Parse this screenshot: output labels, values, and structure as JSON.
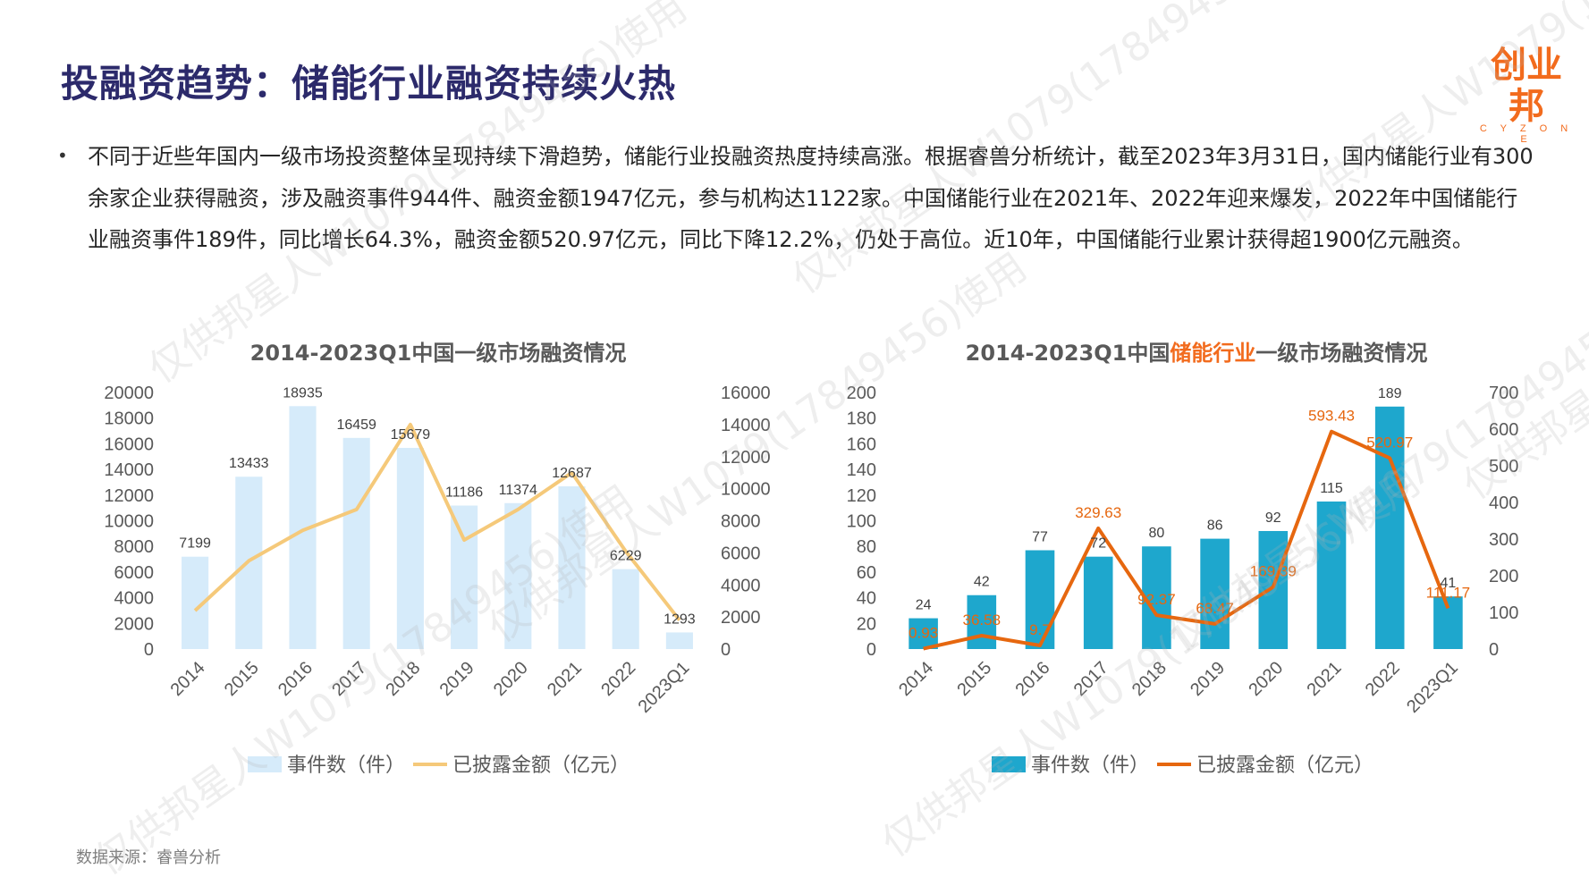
{
  "page": {
    "title": "投融资趋势：储能行业融资持续火热",
    "logo": {
      "text": "创业邦",
      "sub": "C Y Z O N E"
    },
    "paragraph": "不同于近些年国内一级市场投资整体呈现持续下滑趋势，储能行业投融资热度持续高涨。根据睿兽分析统计，截至2023年3月31日，国内储能行业有300余家企业获得融资，涉及融资事件944件、融资金额1947亿元，参与机构达1122家。中国储能行业在2021年、2022年迎来爆发，2022年中国储能行业融资事件189件，同比增长64.3%，融资金额520.97亿元，同比下降12.2%，仍处于高位。近10年，中国储能行业累计获得超1900亿元融资。",
    "source": "数据来源：睿兽分析",
    "watermark": "仅供邦星人W1079(17849456)使用"
  },
  "colors": {
    "title": "#2c2a6b",
    "brand": "#f26b1d",
    "chart1_bar": "#d6ebfa",
    "chart1_line": "#f5c97a",
    "chart2_bar": "#1ea7cd",
    "chart2_line": "#e6670f",
    "chart_title": "#595959",
    "axis_text": "#595959"
  },
  "chart_data": [
    {
      "type": "bar",
      "title": "2014-2023Q1中国一级市场融资情况",
      "categories": [
        "2014",
        "2015",
        "2016",
        "2017",
        "2018",
        "2019",
        "2020",
        "2021",
        "2022",
        "2023Q1"
      ],
      "series": [
        {
          "name": "事件数（件）",
          "type": "bar",
          "axis": "left",
          "values": [
            7199,
            13433,
            18935,
            16459,
            15679,
            11186,
            11374,
            12687,
            6229,
            1293
          ]
        },
        {
          "name": "已披露金额（亿元）",
          "type": "line",
          "axis": "right",
          "values": [
            2400,
            5500,
            7400,
            8700,
            14000,
            6800,
            8700,
            11000,
            6100,
            1800
          ]
        }
      ],
      "y_left": {
        "min": 0,
        "max": 20000,
        "ticks": [
          "0",
          "2000",
          "4000",
          "6000",
          "8000",
          "10000",
          "12000",
          "14000",
          "16000",
          "18000",
          "20000"
        ]
      },
      "y_right": {
        "min": 0,
        "max": 16000,
        "ticks": [
          "0",
          "2000",
          "4000",
          "6000",
          "8000",
          "10000",
          "12000",
          "14000",
          "16000"
        ]
      },
      "bar_labels": [
        "7199",
        "13433",
        "18935",
        "16459",
        "15679",
        "11186",
        "11374",
        "12687",
        "6229",
        "1293"
      ],
      "line_labels": [],
      "legend_position": "bottom",
      "grid": false
    },
    {
      "type": "bar",
      "title_parts": [
        "2014-2023Q1中国",
        "储能行业",
        "一级市场融资情况"
      ],
      "categories": [
        "2014",
        "2015",
        "2016",
        "2017",
        "2018",
        "2019",
        "2020",
        "2021",
        "2022",
        "2023Q1"
      ],
      "series": [
        {
          "name": "事件数（件）",
          "type": "bar",
          "axis": "left",
          "values": [
            24,
            42,
            77,
            72,
            80,
            86,
            92,
            115,
            189,
            41
          ]
        },
        {
          "name": "已披露金额（亿元）",
          "type": "line",
          "axis": "right",
          "values": [
            0.93,
            36.58,
            9.7,
            329.63,
            92.37,
            68.47,
            169.39,
            593.43,
            520.97,
            111.17
          ]
        }
      ],
      "y_left": {
        "min": 0,
        "max": 200,
        "ticks": [
          "0",
          "20",
          "40",
          "60",
          "80",
          "100",
          "120",
          "140",
          "160",
          "180",
          "200"
        ]
      },
      "y_right": {
        "min": 0,
        "max": 700,
        "ticks": [
          "0",
          "100",
          "200",
          "300",
          "400",
          "500",
          "600",
          "700"
        ]
      },
      "bar_labels": [
        "24",
        "42",
        "77",
        "72",
        "80",
        "86",
        "92",
        "115",
        "189",
        "41"
      ],
      "line_labels": [
        "0.93",
        "36.58",
        "9.7",
        "329.63",
        "92.37",
        "68.47",
        "169.39",
        "593.43",
        "520.97",
        "111.17"
      ],
      "legend_position": "bottom",
      "grid": false
    }
  ]
}
